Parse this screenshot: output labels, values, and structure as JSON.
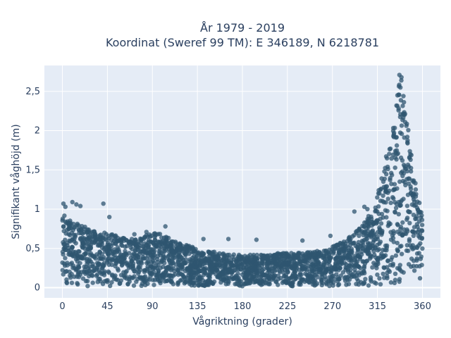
{
  "chart_data": {
    "type": "scatter",
    "title": [
      "År 1979 - 2019",
      "Koordinat (Sweref 99 TM): E 346189, N 6218781"
    ],
    "xlabel": "Vågriktning (grader)",
    "ylabel": "Signifikant våghöjd (m)",
    "xlim": [
      -18,
      378
    ],
    "ylim": [
      -0.13,
      2.83
    ],
    "xticks": [
      0,
      45,
      90,
      135,
      180,
      225,
      270,
      315,
      360
    ],
    "xtick_labels": [
      "0",
      "45",
      "90",
      "135",
      "180",
      "225",
      "270",
      "315",
      "360"
    ],
    "yticks": [
      0,
      0.5,
      1,
      1.5,
      2,
      2.5
    ],
    "ytick_labels": [
      "0",
      "0,5",
      "1",
      "1,5",
      "2",
      "2,5"
    ],
    "grid": true,
    "marker_color": "#2f5670",
    "background_color": "#e5ecf6",
    "upper_envelope": {
      "direction_deg": [
        0,
        10,
        20,
        30,
        45,
        60,
        75,
        90,
        100,
        110,
        135,
        160,
        180,
        200,
        225,
        250,
        270,
        285,
        300,
        310,
        315,
        320,
        325,
        330,
        335,
        338,
        340,
        345,
        350,
        355,
        360
      ],
      "height_m": [
        0.95,
        0.85,
        0.8,
        0.72,
        0.7,
        0.64,
        0.62,
        0.7,
        0.7,
        0.6,
        0.5,
        0.44,
        0.42,
        0.42,
        0.45,
        0.45,
        0.52,
        0.62,
        0.8,
        1.0,
        1.2,
        1.45,
        1.75,
        2.05,
        2.45,
        2.7,
        2.6,
        2.2,
        1.6,
        1.1,
        0.95
      ]
    },
    "outliers": [
      {
        "x": 1,
        "y": 1.07
      },
      {
        "x": 3,
        "y": 1.03
      },
      {
        "x": 10,
        "y": 1.09
      },
      {
        "x": 14,
        "y": 1.06
      },
      {
        "x": 18,
        "y": 1.04
      },
      {
        "x": 41,
        "y": 1.07
      },
      {
        "x": 47,
        "y": 0.9
      },
      {
        "x": 72,
        "y": 0.68
      },
      {
        "x": 84,
        "y": 0.71
      },
      {
        "x": 103,
        "y": 0.78
      },
      {
        "x": 141,
        "y": 0.62
      },
      {
        "x": 166,
        "y": 0.62
      },
      {
        "x": 194,
        "y": 0.61
      },
      {
        "x": 240,
        "y": 0.6
      },
      {
        "x": 268,
        "y": 0.66
      },
      {
        "x": 292,
        "y": 0.97
      },
      {
        "x": 302,
        "y": 1.03
      },
      {
        "x": 305,
        "y": 1.0
      },
      {
        "x": 317,
        "y": 1.2
      },
      {
        "x": 322,
        "y": 1.48
      },
      {
        "x": 328,
        "y": 1.77
      },
      {
        "x": 331,
        "y": 1.93
      },
      {
        "x": 334,
        "y": 2.32
      },
      {
        "x": 335,
        "y": 2.45
      },
      {
        "x": 337,
        "y": 2.71
      },
      {
        "x": 339,
        "y": 2.68
      },
      {
        "x": 338,
        "y": 2.55
      },
      {
        "x": 341,
        "y": 2.44
      },
      {
        "x": 342,
        "y": 2.2
      },
      {
        "x": 345,
        "y": 1.85
      },
      {
        "x": 348,
        "y": 1.7
      },
      {
        "x": 353,
        "y": 1.33
      },
      {
        "x": 357,
        "y": 1.08
      }
    ]
  }
}
